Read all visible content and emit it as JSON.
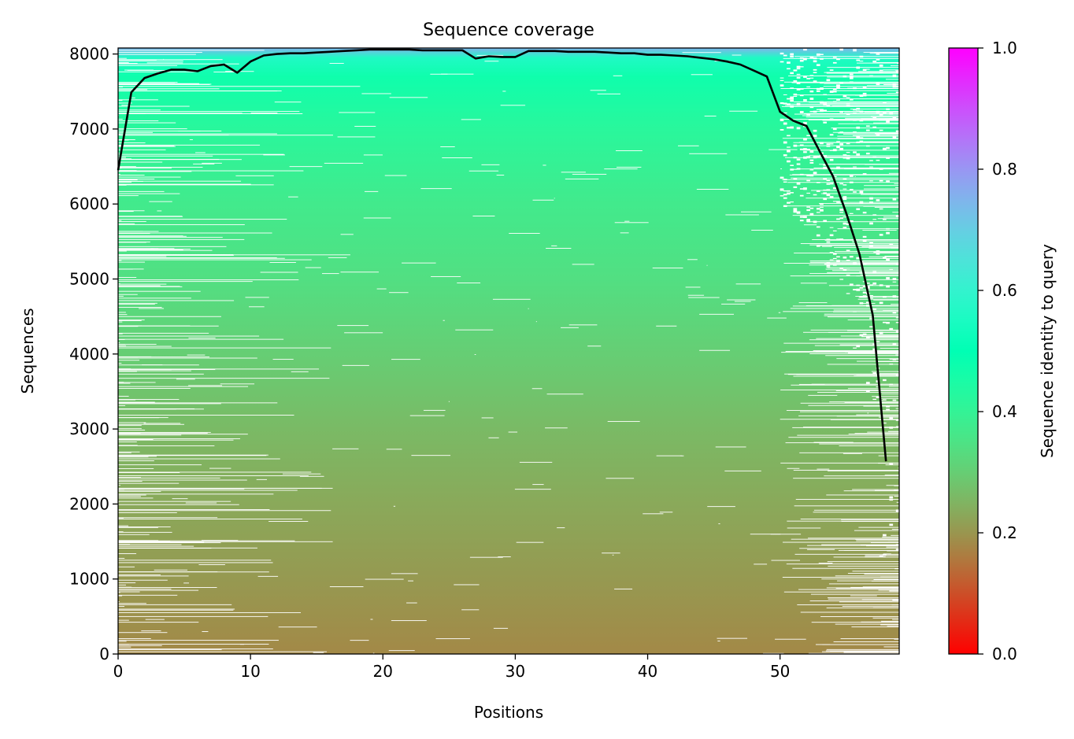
{
  "chart_data": {
    "type": "heatmap",
    "title": "Sequence coverage",
    "xlabel": "Positions",
    "ylabel": "Sequences",
    "xlim": [
      0,
      59
    ],
    "ylim": [
      0,
      8080
    ],
    "xticks": [
      0,
      10,
      20,
      30,
      40,
      50
    ],
    "yticks": [
      0,
      1000,
      2000,
      3000,
      4000,
      5000,
      6000,
      7000,
      8000
    ],
    "grid": false,
    "colorbar": {
      "label": "Sequence identity to query",
      "range": [
        0,
        1
      ],
      "ticks": [
        "0.0",
        "0.2",
        "0.4",
        "0.6",
        "0.8",
        "1.0"
      ],
      "colormap": "rainbow_r"
    },
    "identity_gradient": [
      {
        "seq": 0,
        "identity": 0.18
      },
      {
        "seq": 1000,
        "identity": 0.205
      },
      {
        "seq": 2000,
        "identity": 0.23
      },
      {
        "seq": 3000,
        "identity": 0.26
      },
      {
        "seq": 4000,
        "identity": 0.3
      },
      {
        "seq": 5000,
        "identity": 0.34
      },
      {
        "seq": 6000,
        "identity": 0.37
      },
      {
        "seq": 7000,
        "identity": 0.42
      },
      {
        "seq": 7700,
        "identity": 0.47
      },
      {
        "seq": 7950,
        "identity": 0.56
      },
      {
        "seq": 8080,
        "identity": 0.75
      }
    ],
    "coverage_line": {
      "color": "#000000",
      "x": [
        0,
        1,
        2,
        3,
        4,
        5,
        6,
        7,
        8,
        9,
        10,
        11,
        12,
        13,
        14,
        15,
        16,
        17,
        18,
        19,
        20,
        21,
        22,
        23,
        24,
        25,
        26,
        27,
        28,
        29,
        30,
        31,
        32,
        33,
        34,
        35,
        36,
        37,
        38,
        39,
        40,
        41,
        42,
        43,
        44,
        45,
        46,
        47,
        48,
        49,
        50,
        51,
        52,
        53,
        54,
        55,
        56,
        57,
        58
      ],
      "y": [
        6450,
        7490,
        7680,
        7740,
        7790,
        7790,
        7770,
        7840,
        7860,
        7750,
        7900,
        7980,
        8000,
        8010,
        8010,
        8020,
        8030,
        8040,
        8050,
        8060,
        8060,
        8060,
        8060,
        8050,
        8050,
        8050,
        8050,
        7940,
        7970,
        7960,
        7960,
        8040,
        8040,
        8040,
        8030,
        8030,
        8030,
        8020,
        8010,
        8010,
        7990,
        7990,
        7980,
        7970,
        7950,
        7930,
        7900,
        7860,
        7780,
        7700,
        7230,
        7110,
        7040,
        6700,
        6370,
        5880,
        5330,
        4520,
        2570
      ]
    }
  }
}
